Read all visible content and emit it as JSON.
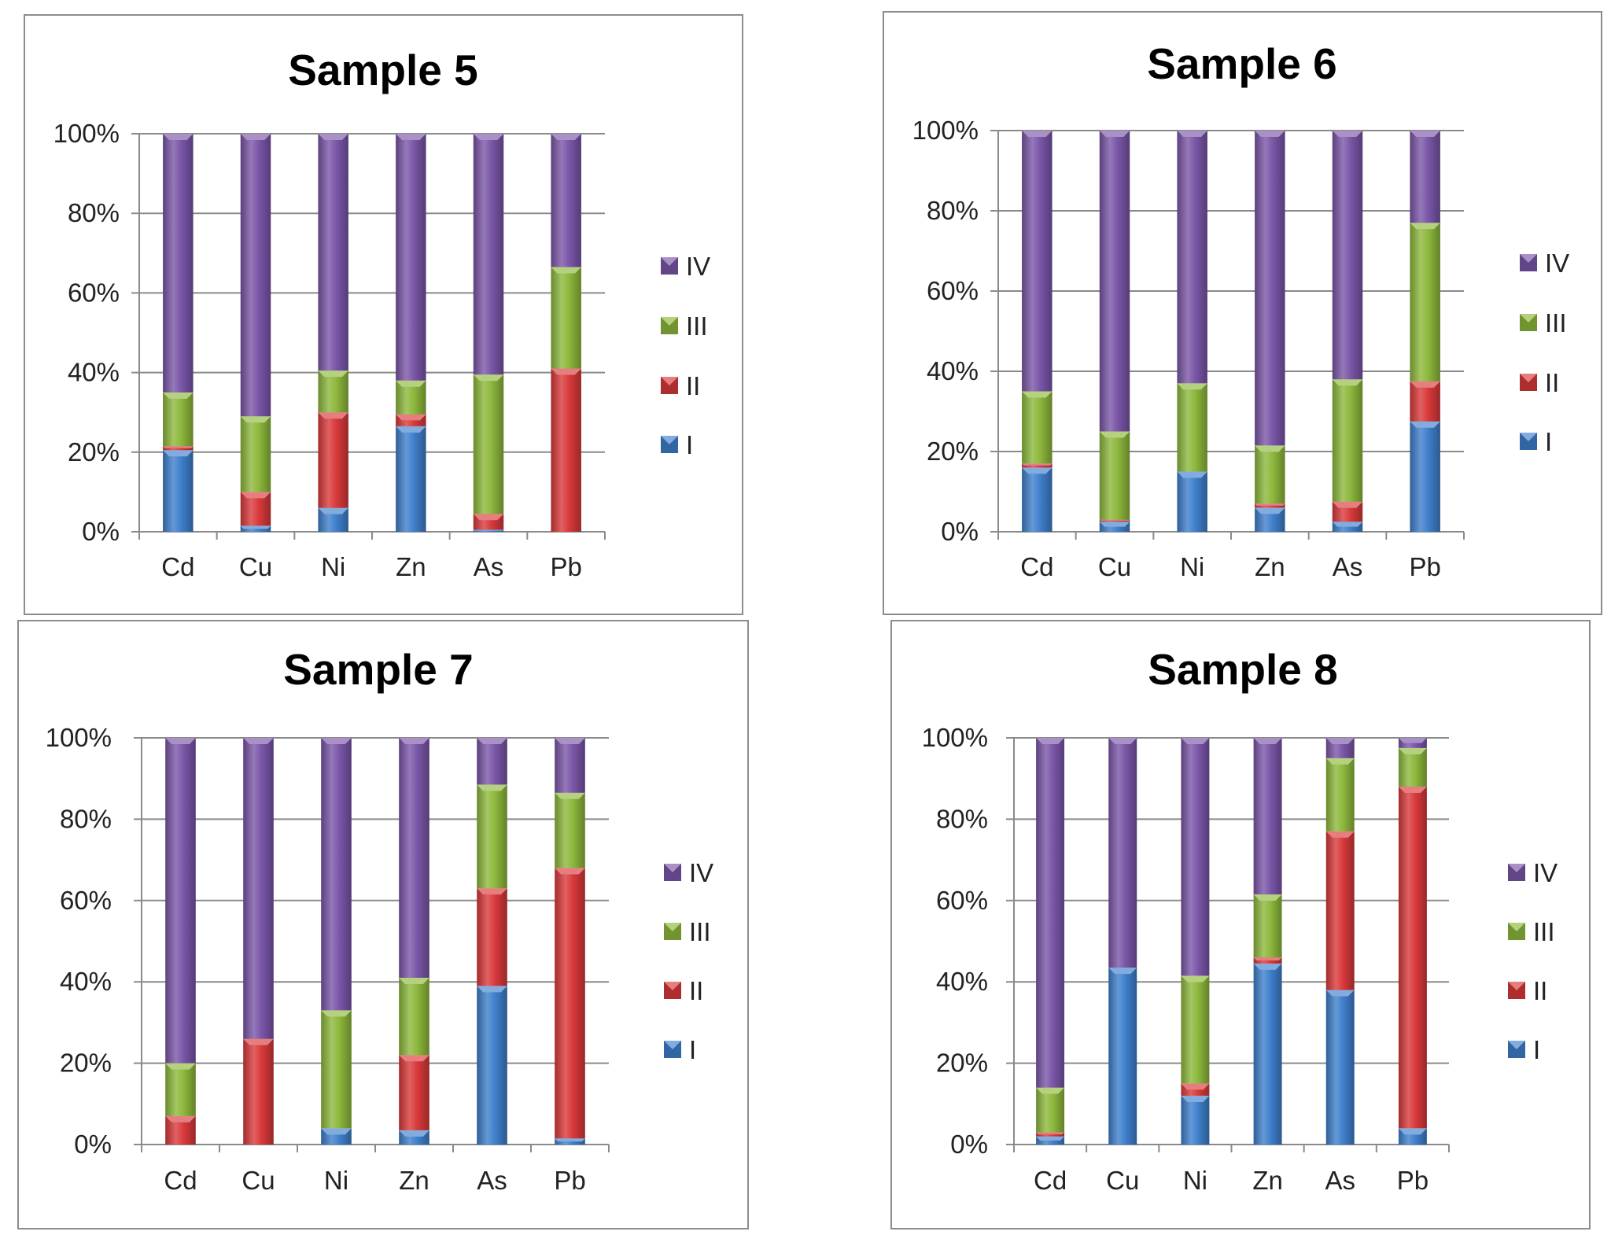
{
  "legend_colors": {
    "I": "#3f7fcc",
    "II": "#d9393b",
    "III": "#8db83c",
    "IV": "#7a56a8"
  },
  "chart_data": [
    {
      "type": "bar",
      "stacked": true,
      "percent": true,
      "title": "Sample 5",
      "categories": [
        "Cd",
        "Cu",
        "Ni",
        "Zn",
        "As",
        "Pb"
      ],
      "yticks": [
        "0%",
        "20%",
        "40%",
        "60%",
        "80%",
        "100%"
      ],
      "ylim": [
        0,
        100
      ],
      "legend": [
        "IV",
        "III",
        "II",
        "I"
      ],
      "legend_position": "right",
      "series": [
        {
          "name": "I",
          "values": [
            20.5,
            1.5,
            6,
            26.5,
            0.5,
            0
          ]
        },
        {
          "name": "II",
          "values": [
            1,
            8.5,
            24,
            3,
            4,
            41
          ]
        },
        {
          "name": "III",
          "values": [
            13.5,
            19,
            10.5,
            8.5,
            35,
            25.5
          ]
        },
        {
          "name": "IV",
          "values": [
            65,
            71,
            59.5,
            62,
            60.5,
            33.5
          ]
        }
      ]
    },
    {
      "type": "bar",
      "stacked": true,
      "percent": true,
      "title": "Sample 6",
      "categories": [
        "Cd",
        "Cu",
        "Ni",
        "Zn",
        "As",
        "Pb"
      ],
      "yticks": [
        "0%",
        "20%",
        "40%",
        "60%",
        "80%",
        "100%"
      ],
      "ylim": [
        0,
        100
      ],
      "legend": [
        "IV",
        "III",
        "II",
        "I"
      ],
      "legend_position": "right",
      "series": [
        {
          "name": "I",
          "values": [
            16,
            2.5,
            15,
            6,
            2.5,
            27.5
          ]
        },
        {
          "name": "II",
          "values": [
            1,
            0.5,
            0,
            1,
            5,
            10
          ]
        },
        {
          "name": "III",
          "values": [
            18,
            22,
            22,
            14.5,
            30.5,
            39.5
          ]
        },
        {
          "name": "IV",
          "values": [
            65,
            75,
            63,
            78.5,
            62,
            23
          ]
        }
      ]
    },
    {
      "type": "bar",
      "stacked": true,
      "percent": true,
      "title": "Sample 7",
      "categories": [
        "Cd",
        "Cu",
        "Ni",
        "Zn",
        "As",
        "Pb"
      ],
      "yticks": [
        "0%",
        "20%",
        "40%",
        "60%",
        "80%",
        "100%"
      ],
      "ylim": [
        0,
        100
      ],
      "legend": [
        "IV",
        "III",
        "II",
        "I"
      ],
      "legend_position": "right",
      "series": [
        {
          "name": "I",
          "values": [
            0,
            0,
            4,
            3.5,
            39,
            1.5
          ]
        },
        {
          "name": "II",
          "values": [
            7,
            26,
            0,
            18.5,
            24,
            66.5
          ]
        },
        {
          "name": "III",
          "values": [
            13,
            0,
            29,
            19,
            25.5,
            18.5
          ]
        },
        {
          "name": "IV",
          "values": [
            80,
            74,
            67,
            59,
            11.5,
            13.5
          ]
        }
      ]
    },
    {
      "type": "bar",
      "stacked": true,
      "percent": true,
      "title": "Sample 8",
      "categories": [
        "Cd",
        "Cu",
        "Ni",
        "Zn",
        "As",
        "Pb"
      ],
      "yticks": [
        "0%",
        "20%",
        "40%",
        "60%",
        "80%",
        "100%"
      ],
      "ylim": [
        0,
        100
      ],
      "legend": [
        "IV",
        "III",
        "II",
        "I"
      ],
      "legend_position": "right",
      "series": [
        {
          "name": "I",
          "values": [
            2,
            43.5,
            12,
            44.5,
            38,
            4
          ]
        },
        {
          "name": "II",
          "values": [
            1,
            0,
            3,
            1.5,
            39,
            84
          ]
        },
        {
          "name": "III",
          "values": [
            11,
            0,
            26.5,
            15.5,
            18,
            9.5
          ]
        },
        {
          "name": "IV",
          "values": [
            86,
            56.5,
            58.5,
            38.5,
            5,
            2.5
          ]
        }
      ]
    }
  ]
}
